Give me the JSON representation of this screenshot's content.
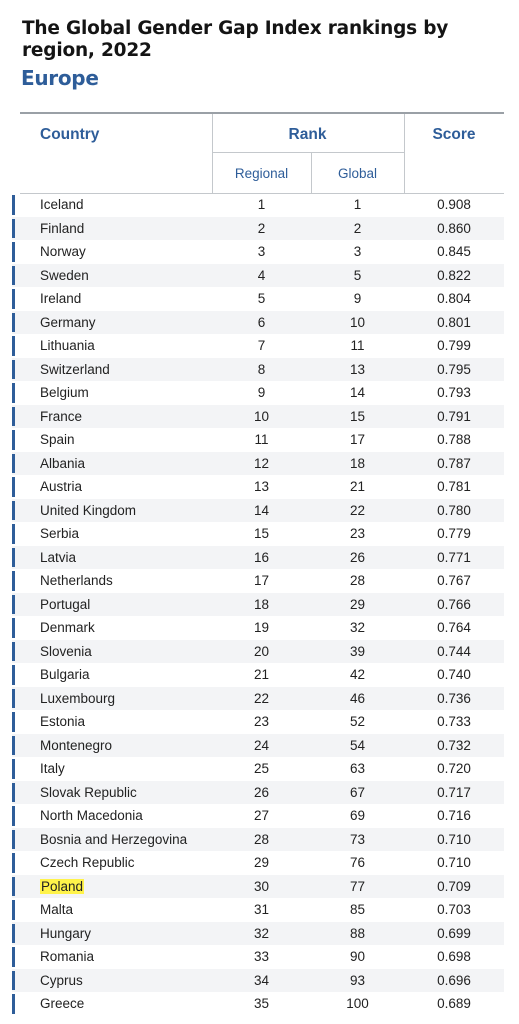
{
  "title": "The Global Gender Gap Index rankings by region, 2022",
  "region": "Europe",
  "headers": {
    "country": "Country",
    "rank": "Rank",
    "score": "Score",
    "regional": "Regional",
    "global": "Global"
  },
  "highlight_color": "#fff34a",
  "accent_color": "#2e5d99",
  "rows": [
    {
      "country": "Iceland",
      "regional": "1",
      "global": "1",
      "score": "0.908"
    },
    {
      "country": "Finland",
      "regional": "2",
      "global": "2",
      "score": "0.860"
    },
    {
      "country": "Norway",
      "regional": "3",
      "global": "3",
      "score": "0.845"
    },
    {
      "country": "Sweden",
      "regional": "4",
      "global": "5",
      "score": "0.822"
    },
    {
      "country": "Ireland",
      "regional": "5",
      "global": "9",
      "score": "0.804"
    },
    {
      "country": "Germany",
      "regional": "6",
      "global": "10",
      "score": "0.801"
    },
    {
      "country": "Lithuania",
      "regional": "7",
      "global": "11",
      "score": "0.799"
    },
    {
      "country": "Switzerland",
      "regional": "8",
      "global": "13",
      "score": "0.795"
    },
    {
      "country": "Belgium",
      "regional": "9",
      "global": "14",
      "score": "0.793"
    },
    {
      "country": "France",
      "regional": "10",
      "global": "15",
      "score": "0.791"
    },
    {
      "country": "Spain",
      "regional": "11",
      "global": "17",
      "score": "0.788"
    },
    {
      "country": "Albania",
      "regional": "12",
      "global": "18",
      "score": "0.787"
    },
    {
      "country": "Austria",
      "regional": "13",
      "global": "21",
      "score": "0.781"
    },
    {
      "country": "United Kingdom",
      "regional": "14",
      "global": "22",
      "score": "0.780"
    },
    {
      "country": "Serbia",
      "regional": "15",
      "global": "23",
      "score": "0.779"
    },
    {
      "country": "Latvia",
      "regional": "16",
      "global": "26",
      "score": "0.771"
    },
    {
      "country": "Netherlands",
      "regional": "17",
      "global": "28",
      "score": "0.767"
    },
    {
      "country": "Portugal",
      "regional": "18",
      "global": "29",
      "score": "0.766"
    },
    {
      "country": "Denmark",
      "regional": "19",
      "global": "32",
      "score": "0.764"
    },
    {
      "country": "Slovenia",
      "regional": "20",
      "global": "39",
      "score": "0.744"
    },
    {
      "country": "Bulgaria",
      "regional": "21",
      "global": "42",
      "score": "0.740"
    },
    {
      "country": "Luxembourg",
      "regional": "22",
      "global": "46",
      "score": "0.736"
    },
    {
      "country": "Estonia",
      "regional": "23",
      "global": "52",
      "score": "0.733"
    },
    {
      "country": "Montenegro",
      "regional": "24",
      "global": "54",
      "score": "0.732"
    },
    {
      "country": "Italy",
      "regional": "25",
      "global": "63",
      "score": "0.720"
    },
    {
      "country": "Slovak Republic",
      "regional": "26",
      "global": "67",
      "score": "0.717"
    },
    {
      "country": "North Macedonia",
      "regional": "27",
      "global": "69",
      "score": "0.716"
    },
    {
      "country": "Bosnia and Herzegovina",
      "regional": "28",
      "global": "73",
      "score": "0.710"
    },
    {
      "country": "Czech Republic",
      "regional": "29",
      "global": "76",
      "score": "0.710"
    },
    {
      "country": "Poland",
      "regional": "30",
      "global": "77",
      "score": "0.709",
      "highlighted": true
    },
    {
      "country": "Malta",
      "regional": "31",
      "global": "85",
      "score": "0.703"
    },
    {
      "country": "Hungary",
      "regional": "32",
      "global": "88",
      "score": "0.699"
    },
    {
      "country": "Romania",
      "regional": "33",
      "global": "90",
      "score": "0.698"
    },
    {
      "country": "Cyprus",
      "regional": "34",
      "global": "93",
      "score": "0.696"
    },
    {
      "country": "Greece",
      "regional": "35",
      "global": "100",
      "score": "0.689"
    }
  ]
}
